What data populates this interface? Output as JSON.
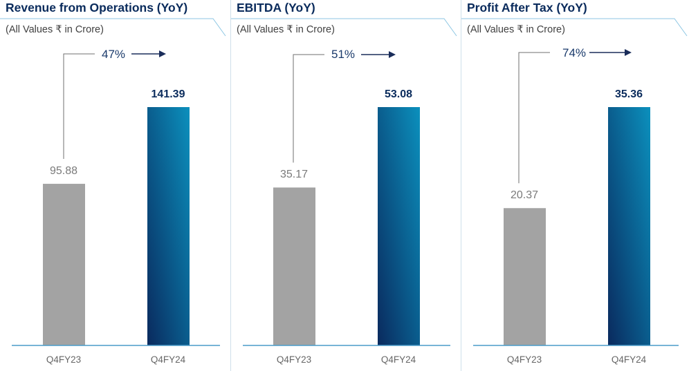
{
  "colors": {
    "accent": "#0c5b93",
    "bar_prior": "#a3a3a3",
    "bar_gradient": [
      "#0a2a5e",
      "#0b90bd"
    ],
    "title": "#0a2b5c",
    "rule": "#4a9cc9"
  },
  "chart_data": [
    {
      "type": "bar",
      "title": "Revenue from Operations (YoY)",
      "subtitle": "(All Values ₹ in Crore)",
      "categories": [
        "Q4FY23",
        "Q4FY24"
      ],
      "values": [
        95.88,
        141.39
      ],
      "value_labels": [
        "95.88",
        "141.39"
      ],
      "growth_label": "47%",
      "ylim": [
        0,
        141.39
      ]
    },
    {
      "type": "bar",
      "title": "EBITDA (YoY)",
      "subtitle": "(All Values ₹ in Crore)",
      "categories": [
        "Q4FY23",
        "Q4FY24"
      ],
      "values": [
        35.17,
        53.08
      ],
      "value_labels": [
        "35.17",
        "53.08"
      ],
      "growth_label": "51%",
      "ylim": [
        0,
        53.08
      ]
    },
    {
      "type": "bar",
      "title": "Profit After Tax (YoY)",
      "subtitle": "(All Values ₹ in Crore)",
      "categories": [
        "Q4FY23",
        "Q4FY24"
      ],
      "values": [
        20.37,
        35.36
      ],
      "value_labels": [
        "20.37",
        "35.36"
      ],
      "growth_label": "74%",
      "ylim": [
        0,
        35.36
      ]
    }
  ]
}
